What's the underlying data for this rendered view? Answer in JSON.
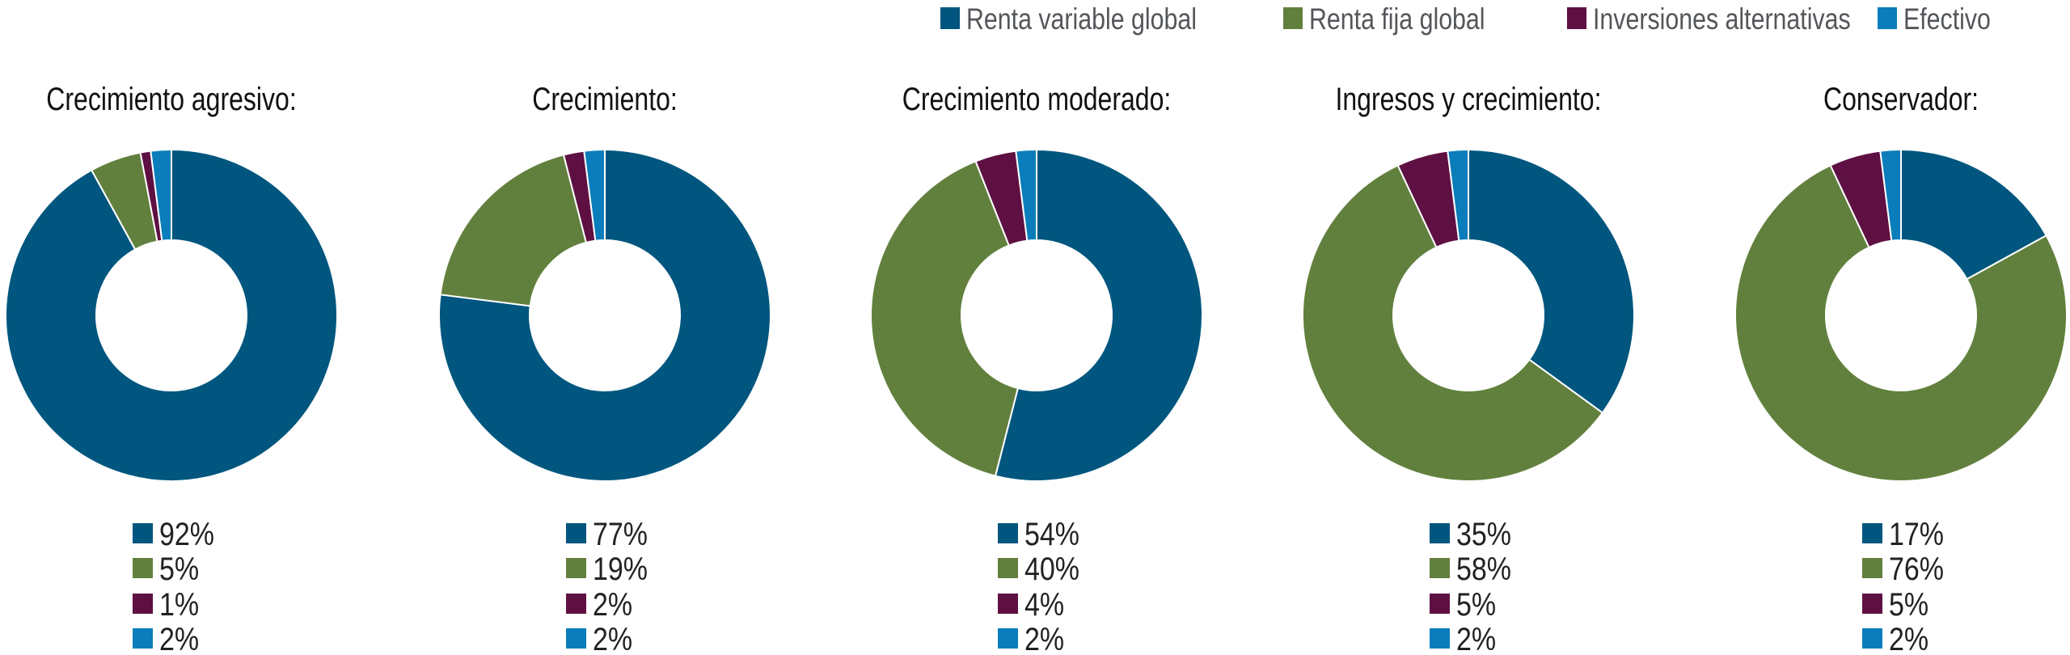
{
  "chart_data": [
    {
      "type": "pie",
      "donut": true,
      "title": "Crecimiento agresivo:",
      "categories": [
        "Renta variable global",
        "Renta fija global",
        "Inversiones alternativas",
        "Efectivo"
      ],
      "values": [
        92,
        5,
        1,
        2
      ],
      "labels": [
        "92%",
        "5%",
        "1%",
        "2%"
      ]
    },
    {
      "type": "pie",
      "donut": true,
      "title": "Crecimiento:",
      "categories": [
        "Renta variable global",
        "Renta fija global",
        "Inversiones alternativas",
        "Efectivo"
      ],
      "values": [
        77,
        19,
        2,
        2
      ],
      "labels": [
        "77%",
        "19%",
        "2%",
        "2%"
      ]
    },
    {
      "type": "pie",
      "donut": true,
      "title": "Crecimiento moderado:",
      "categories": [
        "Renta variable global",
        "Renta fija global",
        "Inversiones alternativas",
        "Efectivo"
      ],
      "values": [
        54,
        40,
        4,
        2
      ],
      "labels": [
        "54%",
        "40%",
        "4%",
        "2%"
      ]
    },
    {
      "type": "pie",
      "donut": true,
      "title": "Ingresos y crecimiento:",
      "categories": [
        "Renta variable global",
        "Renta fija global",
        "Inversiones alternativas",
        "Efectivo"
      ],
      "values": [
        35,
        58,
        5,
        2
      ],
      "labels": [
        "35%",
        "58%",
        "5%",
        "2%"
      ]
    },
    {
      "type": "pie",
      "donut": true,
      "title": "Conservador:",
      "categories": [
        "Renta variable global",
        "Renta fija global",
        "Inversiones alternativas",
        "Efectivo"
      ],
      "values": [
        17,
        76,
        5,
        2
      ],
      "labels": [
        "17%",
        "76%",
        "5%",
        "2%"
      ]
    }
  ],
  "legend": {
    "placement": "top-right",
    "items": [
      {
        "label": "Renta variable global",
        "color": "#00567e"
      },
      {
        "label": "Renta fija global",
        "color": "#62803d"
      },
      {
        "label": "Inversiones alternativas",
        "color": "#5e1043"
      },
      {
        "label": "Efectivo",
        "color": "#0a7dba"
      }
    ]
  }
}
